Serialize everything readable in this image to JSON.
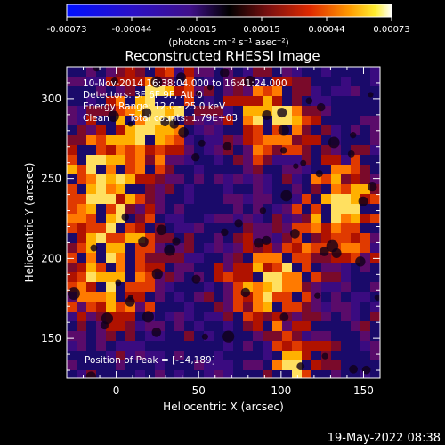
{
  "colorbar": {
    "ticks": [
      "-0.00073",
      "-0.00044",
      "-0.00015",
      "0.00015",
      "0.00044",
      "0.00073"
    ],
    "units": "(photons cm⁻² s⁻¹ asec⁻²)"
  },
  "image": {
    "title": "Reconstructed RHESSI Image",
    "time_range": "10-Nov-2014 16:38:04.000 to 16:41:24.000",
    "detectors": "Detectors: 3F 6F 9F, Att 0",
    "energy_range": "Energy Range: 12.0 - 25.0 keV",
    "method": "Clean",
    "total_counts": "Total counts: 1.79E+03",
    "peak_position": "Position of Peak = [-14,189]"
  },
  "axes": {
    "xlabel": "Heliocentric X (arcsec)",
    "ylabel": "Heliocentric Y (arcsec)",
    "x_range": [
      -30,
      160
    ],
    "y_range": [
      125,
      320
    ],
    "x_ticks": [
      "0",
      "50",
      "100",
      "150"
    ],
    "y_ticks": [
      "150",
      "200",
      "250",
      "300"
    ]
  },
  "footer": {
    "timestamp": "19-May-2022 08:38"
  },
  "colors": {
    "background": "#000000",
    "text": "#ffffff",
    "colormap": [
      "#0000ff",
      "#2b0a8a",
      "#4a0a50",
      "#000000",
      "#6a0b15",
      "#d91f00",
      "#ff8a00",
      "#ffe800",
      "#ffffff"
    ]
  }
}
